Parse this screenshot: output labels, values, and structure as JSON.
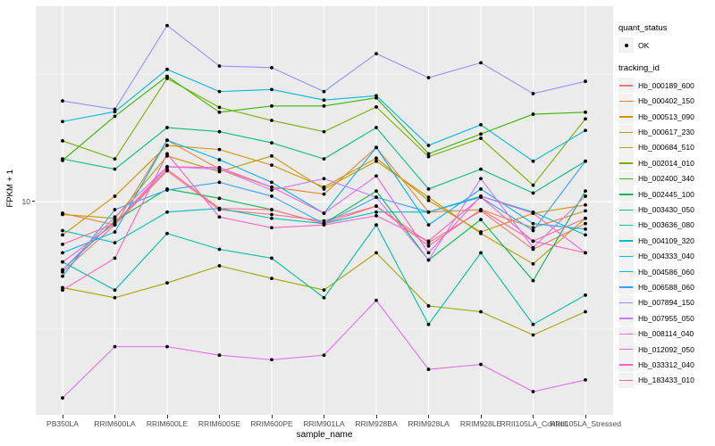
{
  "figure": {
    "y_axis_title": "FPKM + 1",
    "x_axis_title": "sample_name",
    "y_tick_label": "10"
  },
  "legend": {
    "quant_status": {
      "title": "quant_status",
      "items": [
        {
          "label": "OK",
          "symbol": "black-point"
        }
      ]
    },
    "tracking_id": {
      "title": "tracking_id"
    }
  },
  "colors": {
    "panel_background": "#EBEBEB",
    "grid_major": "#FFFFFF",
    "grid_minor": "#FFFFFF",
    "axis_text": "#4D4D4D",
    "title_text": "#000000",
    "tick_mark": "#333333",
    "point": "#000000",
    "legend_key_background": "#F2F2F2"
  },
  "chart_data": {
    "type": "line",
    "title": "",
    "xlabel": "sample_name",
    "ylabel": "FPKM + 1",
    "y_scale": "log10",
    "y_major_ticks": [
      10
    ],
    "y_minor_gridlines": [
      3.162,
      31.62
    ],
    "ylim_approx": [
      1.45,
      58
    ],
    "grid": "on",
    "legend_position": "right",
    "point_shape": "filled-black-point",
    "categories": [
      "PB350LA",
      "RRIM600LA",
      "RRIM600LE",
      "RRIM600SE",
      "RRIM600PE",
      "RRIM901LA",
      "RRIM928BA",
      "RRIM928LA",
      "RRIM928LE",
      "RRII105LA_Control",
      "RRII105LA_Stressed"
    ],
    "series": [
      {
        "name": "Hb_000189_600",
        "color": "#F8766D",
        "values": [
          5.3,
          8.1,
          13.2,
          9.3,
          8.9,
          8.4,
          9.6,
          6.9,
          9.2,
          6.5,
          8.2
        ]
      },
      {
        "name": "Hb_000402_150",
        "color": "#EA8331",
        "values": [
          9.0,
          8.1,
          17.4,
          13.4,
          11.4,
          10.7,
          16.3,
          9.1,
          9.3,
          7.9,
          9.2
        ]
      },
      {
        "name": "Hb_000513_090",
        "color": "#D89000",
        "values": [
          7.4,
          10.5,
          16.6,
          16.0,
          13.9,
          11.4,
          14.8,
          10.1,
          7.6,
          9.0,
          9.7
        ]
      },
      {
        "name": "Hb_000617_230",
        "color": "#C09B00",
        "values": [
          8.9,
          8.6,
          15.1,
          13.1,
          15.1,
          11.2,
          14.4,
          10.4,
          7.5,
          5.7,
          8.6
        ]
      },
      {
        "name": "Hb_000684_510",
        "color": "#A3A500",
        "values": [
          4.6,
          4.2,
          4.8,
          5.6,
          5.0,
          4.5,
          6.3,
          3.9,
          3.7,
          3.0,
          3.7
        ]
      },
      {
        "name": "Hb_002014_010",
        "color": "#7CAE00",
        "values": [
          17.3,
          14.7,
          30.4,
          23.4,
          20.8,
          18.8,
          23.5,
          15.0,
          17.7,
          11.6,
          21.1
        ]
      },
      {
        "name": "Hb_002400_340",
        "color": "#39B600",
        "values": [
          14.5,
          21.6,
          31.0,
          22.4,
          23.7,
          23.7,
          25.5,
          15.4,
          18.4,
          22.0,
          22.4
        ]
      },
      {
        "name": "Hb_002445_100",
        "color": "#00BB4E",
        "values": [
          5.4,
          8.4,
          11.2,
          10.3,
          9.3,
          8.2,
          11.0,
          5.9,
          8.5,
          4.9,
          11.0
        ]
      },
      {
        "name": "Hb_003430_050",
        "color": "#00BF7D",
        "values": [
          14.7,
          13.4,
          19.5,
          18.8,
          17.0,
          14.7,
          19.5,
          11.2,
          13.4,
          10.8,
          14.4
        ]
      },
      {
        "name": "Hb_003636_080",
        "color": "#00C1A3",
        "values": [
          5.8,
          4.5,
          7.5,
          6.5,
          6.0,
          4.2,
          8.1,
          3.3,
          6.3,
          3.3,
          4.3
        ]
      },
      {
        "name": "Hb_004109_320",
        "color": "#00BFC4",
        "values": [
          7.7,
          6.9,
          9.1,
          9.4,
          8.6,
          8.2,
          9.1,
          9.1,
          10.5,
          9.1,
          7.4
        ]
      },
      {
        "name": "Hb_004333_040",
        "color": "#00BAE0",
        "values": [
          20.6,
          22.5,
          33.0,
          27.0,
          27.5,
          25.0,
          26.0,
          16.6,
          20.0,
          14.4,
          19.0
        ]
      },
      {
        "name": "Hb_004586_060",
        "color": "#00B0F6",
        "values": [
          6.3,
          7.6,
          17.4,
          14.6,
          11.9,
          9.0,
          16.3,
          8.1,
          11.2,
          8.2,
          7.8
        ]
      },
      {
        "name": "Hb_006588_060",
        "color": "#35A2FF",
        "values": [
          5.1,
          9.3,
          11.1,
          11.9,
          10.5,
          8.2,
          10.4,
          9.1,
          10.4,
          7.7,
          14.4
        ]
      },
      {
        "name": "Hb_007894_150",
        "color": "#9590FF",
        "values": [
          24.8,
          23.0,
          49.0,
          34.0,
          33.5,
          27.0,
          38.0,
          30.6,
          35.0,
          26.5,
          29.6
        ]
      },
      {
        "name": "Hb_007955_050",
        "color": "#C77CFF",
        "values": [
          5.4,
          8.7,
          13.7,
          13.4,
          11.1,
          12.3,
          10.4,
          5.9,
          12.3,
          6.6,
          10.5
        ]
      },
      {
        "name": "Hb_008114_040",
        "color": "#E76BF3",
        "values": [
          1.7,
          2.7,
          2.7,
          2.5,
          2.4,
          2.5,
          4.1,
          2.2,
          2.3,
          1.8,
          2.0
        ]
      },
      {
        "name": "Hb_012092_050",
        "color": "#FA62DB",
        "values": [
          5.8,
          8.2,
          13.7,
          13.6,
          11.4,
          9.0,
          12.6,
          6.3,
          10.5,
          9.0,
          6.3
        ]
      },
      {
        "name": "Hb_033312_040",
        "color": "#FF62BC",
        "values": [
          4.5,
          6.0,
          15.4,
          8.7,
          7.9,
          8.1,
          8.8,
          7.0,
          10.4,
          7.0,
          6.3
        ]
      },
      {
        "name": "Hb_183433_010",
        "color": "#FF6A98",
        "values": [
          6.8,
          8.2,
          13.4,
          9.4,
          9.3,
          8.2,
          9.6,
          6.7,
          9.3,
          7.0,
          8.6
        ]
      }
    ]
  }
}
